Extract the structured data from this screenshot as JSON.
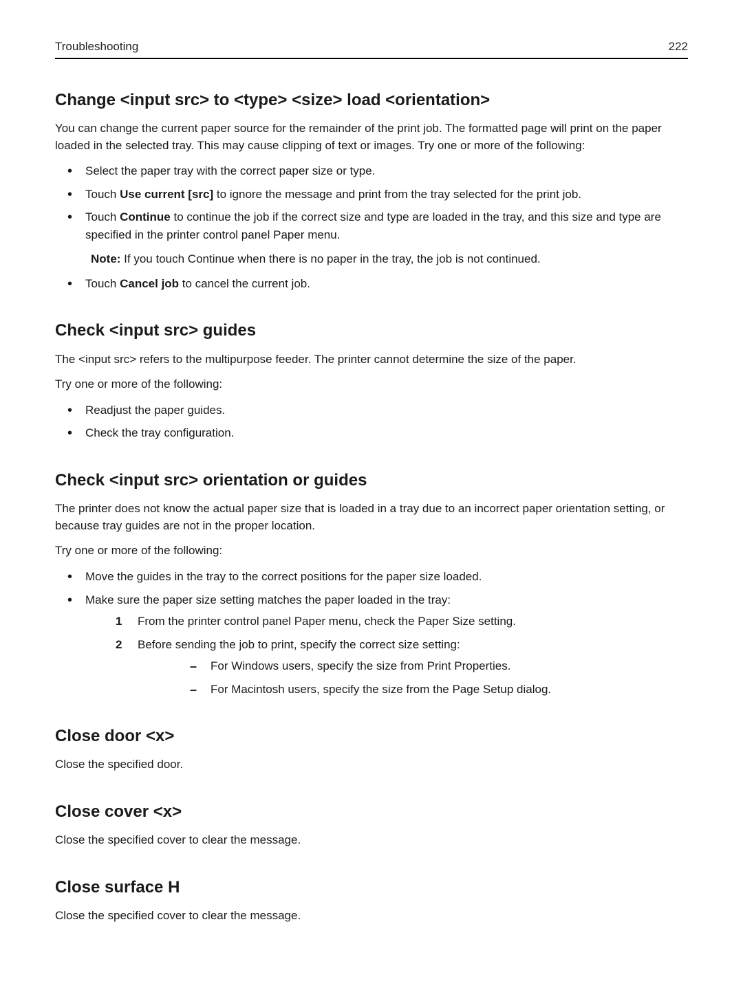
{
  "header": {
    "title": "Troubleshooting",
    "page_number": "222"
  },
  "sections": [
    {
      "heading": "Change <input src> to <type> <size> load <orientation>",
      "intro": "You can change the current paper source for the remainder of the print job. The formatted page will print on the paper loaded in the selected tray. This may cause clipping of text or images. Try one or more of the following:",
      "bullets": [
        {
          "pre": "",
          "bold": "",
          "post": "Select the paper tray with the correct paper size or type."
        },
        {
          "pre": "Touch ",
          "bold": "Use current [src]",
          "post": " to ignore the message and print from the tray selected for the print job."
        },
        {
          "pre": "Touch ",
          "bold": "Continue",
          "post": " to continue the job if the correct size and type are loaded in the tray, and this size and type are specified in the printer control panel Paper menu."
        }
      ],
      "note": {
        "label": "Note:",
        "text": " If you touch Continue when there is no paper in the tray, the job is not continued."
      },
      "bullets_after_note": [
        {
          "pre": "Touch ",
          "bold": "Cancel job",
          "post": " to cancel the current job."
        }
      ]
    },
    {
      "heading": "Check <input src> guides",
      "intro": "The <input src> refers to the multipurpose feeder. The printer cannot determine the size of the paper.",
      "lead2": "Try one or more of the following:",
      "bullets": [
        {
          "pre": "",
          "bold": "",
          "post": "Readjust the paper guides."
        },
        {
          "pre": "",
          "bold": "",
          "post": "Check the tray configuration."
        }
      ]
    },
    {
      "heading": "Check <input src> orientation or guides",
      "intro": "The printer does not know the actual paper size that is loaded in a tray due to an incorrect paper orientation setting, or because tray guides are not in the proper location.",
      "lead2": "Try one or more of the following:",
      "bullets": [
        {
          "pre": "",
          "bold": "",
          "post": "Move the guides in the tray to the correct positions for the paper size loaded."
        },
        {
          "pre": "",
          "bold": "",
          "post": "Make sure the paper size setting matches the paper loaded in the tray:"
        }
      ],
      "numbered": [
        "From the printer control panel Paper menu, check the Paper Size setting.",
        "Before sending the job to print, specify the correct size setting:"
      ],
      "dashes": [
        "For Windows users, specify the size from Print Properties.",
        "For Macintosh users, specify the size from the Page Setup dialog."
      ]
    },
    {
      "heading": "Close door <x>",
      "intro": "Close the specified door."
    },
    {
      "heading": "Close cover <x>",
      "intro": "Close the specified cover to clear the message."
    },
    {
      "heading": "Close surface H",
      "intro": "Close the specified cover to clear the message."
    }
  ]
}
